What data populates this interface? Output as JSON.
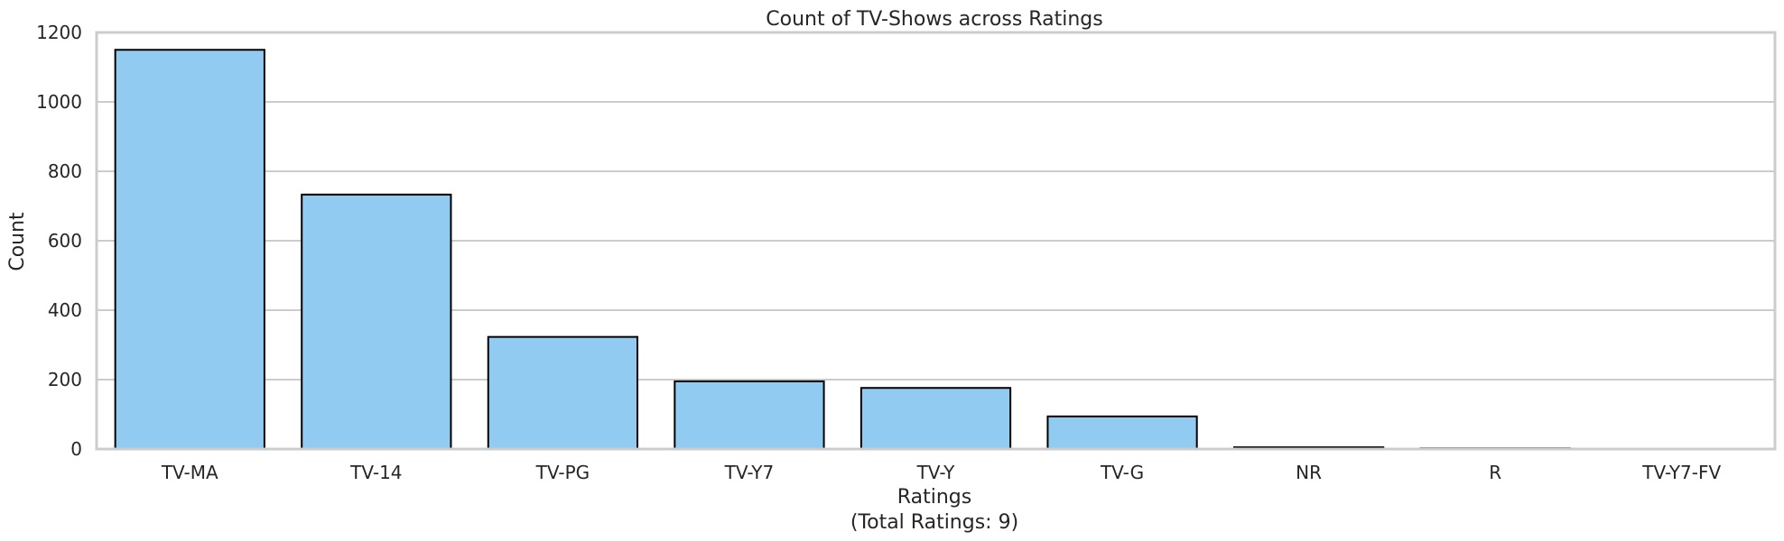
{
  "chart_data": {
    "type": "bar",
    "title": "Count of TV-Shows across Ratings",
    "xlabel_lines": [
      "Ratings",
      "(Total Ratings: 9)"
    ],
    "ylabel": "Count",
    "categories": [
      "TV-MA",
      "TV-14",
      "TV-PG",
      "TV-Y7",
      "TV-Y",
      "TV-G",
      "NR",
      "R",
      "TV-Y7-FV"
    ],
    "values": [
      1150,
      733,
      323,
      195,
      176,
      94,
      5,
      2,
      1
    ],
    "ylim": [
      0,
      1200
    ],
    "yticks": [
      0,
      200,
      400,
      600,
      800,
      1000,
      1200
    ],
    "grid": "horizontal",
    "bar_color": "#92CBF1",
    "bar_edge_color": "#000000"
  }
}
